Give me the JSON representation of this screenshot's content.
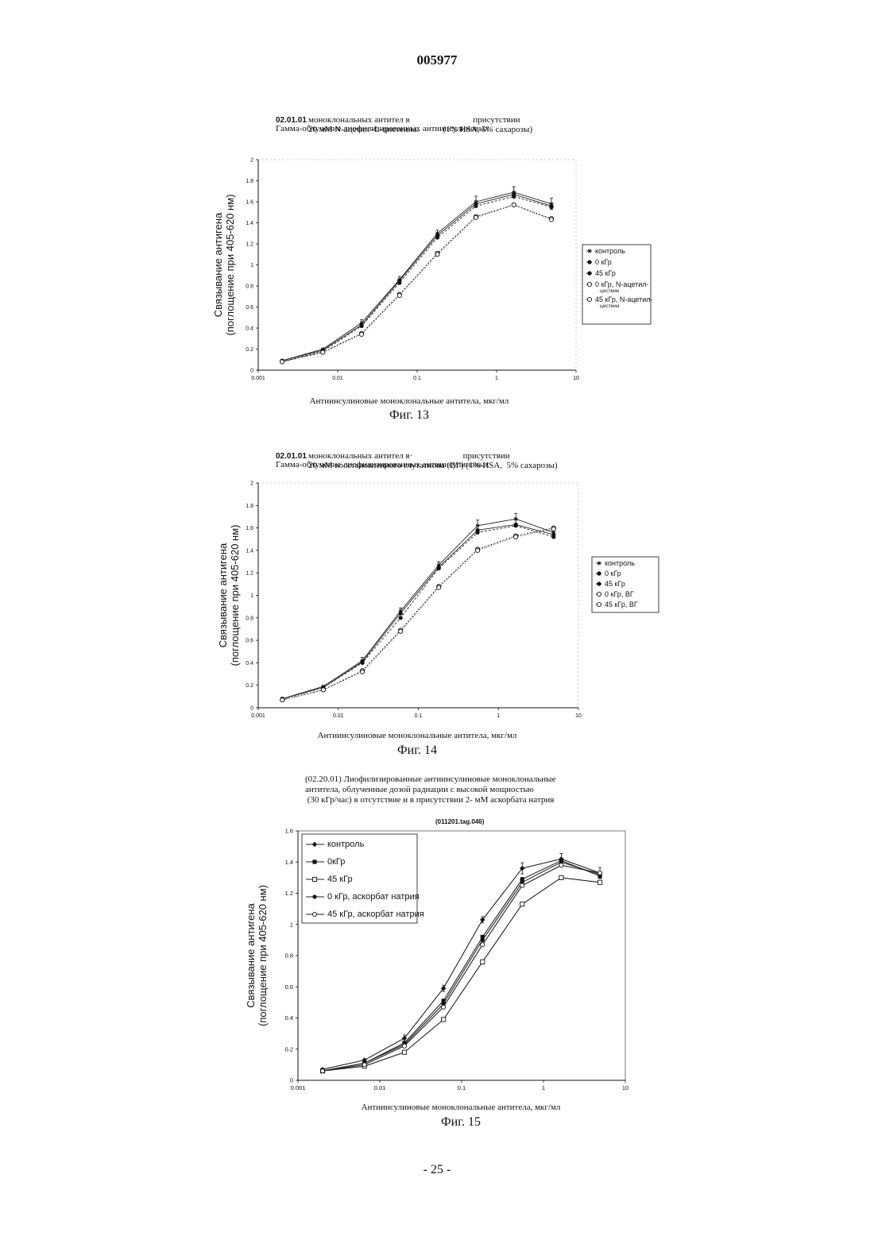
{
  "document_number": "005977",
  "page_number": "- 25 -",
  "figures": [
    {
      "id": "fig13",
      "code": "02.01.01",
      "title_lines": [
        "Гамма-облучение лиофилизированных антиинсулиновых",
        "моноклональных антител в                             присутствии",
        "20 мМ N-ацетил -L-цистеина.           (1% HSA, 5% сахарозы)"
      ],
      "x_label": "Антиинсулиновые моноклональные антитела, мкг/мл",
      "caption": "Фиг. 13"
    },
    {
      "id": "fig14",
      "code": "02.01.01",
      "title_lines": [
        "Гамма-облучение лиофилизированных антиинсулиновых",
        "моноклональных антител в·                       присутствии",
        "20 мМ восстановленного глутатиона (ВГ) (1% HSA,  5% сахарозы)"
      ],
      "x_label": "Антиинсулиновые моноклональные антитела, мкг/мл",
      "caption": "Фиг. 14"
    },
    {
      "id": "fig15",
      "code": "",
      "title_lines": [
        "(02.20.01) Лиофилизированные антиинсулиновые моноклональные",
        "антитела, облученные дозой радиации с высокой мощностью",
        " (30 кГр/час) в отсутствие и в присутствии 2- мМ аскорбата натрия"
      ],
      "title_sub": "(011201.tag.046)",
      "x_label": "Антиинсулиновые моноклональные антитела, мкг/мл",
      "caption": "Фиг. 15"
    }
  ],
  "chart_data": [
    {
      "type": "line",
      "x_scale": "log",
      "xlim": [
        0.001,
        10
      ],
      "ylim": [
        0,
        2
      ],
      "x_ticks": [
        "0.001",
        "0.01",
        "0.1",
        "1",
        "10"
      ],
      "y_ticks": [
        "0",
        "0.2",
        "0.4",
        "0.6",
        "0.8",
        "1",
        "1.2",
        "1.4",
        "1.6",
        "1.8",
        "2"
      ],
      "ylabel": [
        "Связывание антигена",
        "(поглощение при 405-620 нм)"
      ],
      "xlabel": "Антиинсулиновые моноклональные антитела, мкг/мл",
      "grid": false,
      "legend_position": "right",
      "x": [
        0.002,
        0.0065,
        0.02,
        0.06,
        0.18,
        0.55,
        1.65,
        4.9
      ],
      "series": [
        {
          "name": "контроль",
          "values": [
            0.09,
            0.2,
            0.45,
            0.86,
            1.3,
            1.6,
            1.69,
            1.58
          ]
        },
        {
          "name": "0 кГр",
          "values": [
            0.09,
            0.19,
            0.43,
            0.85,
            1.28,
            1.58,
            1.67,
            1.56
          ]
        },
        {
          "name": "45 кГр",
          "values": [
            0.08,
            0.18,
            0.42,
            0.83,
            1.26,
            1.56,
            1.65,
            1.55
          ]
        },
        {
          "name": "0 кГр, N-ацетил-цистеин",
          "values": [
            0.08,
            0.17,
            0.35,
            0.72,
            1.11,
            1.46,
            1.57,
            1.44
          ]
        },
        {
          "name": "45 кГр, N-ацетил-цистеин",
          "values": [
            0.08,
            0.17,
            0.34,
            0.71,
            1.1,
            1.45,
            1.57,
            1.43
          ]
        }
      ],
      "legend_labels": [
        [
          "контроль"
        ],
        [
          "0 кГр"
        ],
        [
          "45 кГр"
        ],
        [
          "0 кГр, N-ацетил-",
          "цистеин"
        ],
        [
          "45 кГр, N-ацетил-",
          "цистеин"
        ]
      ]
    },
    {
      "type": "line",
      "x_scale": "log",
      "xlim": [
        0.001,
        10
      ],
      "ylim": [
        0,
        2
      ],
      "x_ticks": [
        "0.001",
        "0.01",
        "0.1",
        "1",
        "10"
      ],
      "y_ticks": [
        "0",
        "0.2",
        "0.4",
        "0.6",
        "0.8",
        "1",
        "1.2",
        "1.4",
        "1.6",
        "1.8",
        "2"
      ],
      "ylabel": [
        "Связывание антигена",
        "(поглощение при 405-620 нм)"
      ],
      "xlabel": "Антиинсулиновые моноклональные антитела, мкг/мл",
      "grid": false,
      "legend_position": "right",
      "x": [
        0.002,
        0.0065,
        0.02,
        0.06,
        0.18,
        0.55,
        1.65,
        4.9
      ],
      "series": [
        {
          "name": "контроль",
          "values": [
            0.08,
            0.19,
            0.42,
            0.86,
            1.27,
            1.62,
            1.68,
            1.56
          ]
        },
        {
          "name": "0 кГр",
          "values": [
            0.08,
            0.18,
            0.41,
            0.84,
            1.25,
            1.58,
            1.63,
            1.54
          ]
        },
        {
          "name": "45 кГр",
          "values": [
            0.08,
            0.18,
            0.4,
            0.8,
            1.24,
            1.56,
            1.62,
            1.52
          ]
        },
        {
          "name": "0 кГр, ВГ",
          "values": [
            0.07,
            0.16,
            0.33,
            0.69,
            1.08,
            1.41,
            1.53,
            1.6
          ]
        },
        {
          "name": "45 кГр, ВГ",
          "values": [
            0.07,
            0.16,
            0.32,
            0.68,
            1.07,
            1.4,
            1.52,
            1.59
          ]
        }
      ],
      "legend_labels": [
        [
          "контроль"
        ],
        [
          "0 кГр"
        ],
        [
          "45 кГр"
        ],
        [
          "0 кГр, ВГ"
        ],
        [
          "45 кГр, ВГ"
        ]
      ]
    },
    {
      "type": "line",
      "x_scale": "log",
      "xlim": [
        0.001,
        10
      ],
      "ylim": [
        0,
        1.6
      ],
      "x_ticks": [
        "0.001",
        "0.01",
        "0.1",
        "1",
        "10"
      ],
      "y_ticks": [
        "0",
        "0.2",
        "0.4",
        "0.6",
        "0.8",
        "1",
        "1.2",
        "1.4",
        "1.6"
      ],
      "ylabel": [
        "Связывание антигена",
        "(поглощение при 405-620 нм)"
      ],
      "xlabel": "Антиинсулиновые моноклональные антитела, мкг/мл",
      "grid": false,
      "legend_position": "top-left",
      "x": [
        0.002,
        0.0065,
        0.02,
        0.06,
        0.18,
        0.55,
        1.65,
        4.9
      ],
      "series": [
        {
          "name": "контроль",
          "values": [
            0.07,
            0.13,
            0.27,
            0.59,
            1.03,
            1.36,
            1.42,
            1.33
          ]
        },
        {
          "name": "0 кГр",
          "values": [
            0.06,
            0.11,
            0.24,
            0.51,
            0.92,
            1.29,
            1.41,
            1.31
          ]
        },
        {
          "name": "45 кГр",
          "values": [
            0.06,
            0.09,
            0.18,
            0.39,
            0.76,
            1.13,
            1.3,
            1.27
          ]
        },
        {
          "name": "0 кГр, аскорбат натрия",
          "values": [
            0.06,
            0.11,
            0.23,
            0.49,
            0.9,
            1.27,
            1.4,
            1.32
          ]
        },
        {
          "name": "45 кГр, аскорбат натрия",
          "values": [
            0.06,
            0.1,
            0.22,
            0.47,
            0.87,
            1.25,
            1.38,
            1.33
          ]
        }
      ],
      "legend_labels": [
        [
          "контроль"
        ],
        [
          "0кГр"
        ],
        [
          "45 кГр"
        ],
        [
          "0 кГр,  аскорбат натрия"
        ],
        [
          "45 кГр, аскорбат натрия"
        ]
      ]
    }
  ]
}
